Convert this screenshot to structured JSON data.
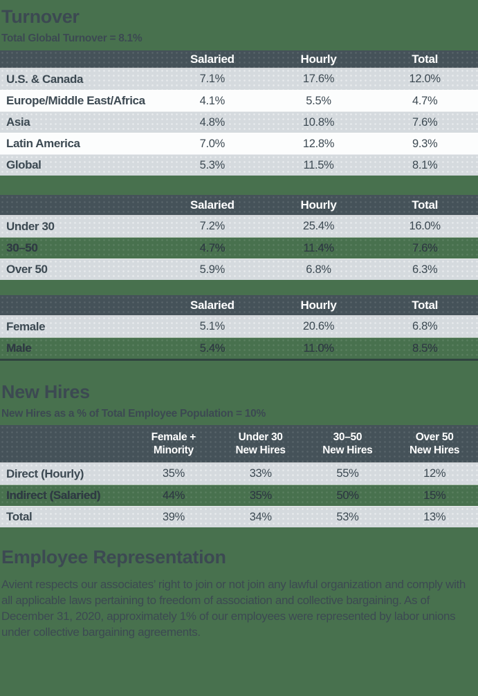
{
  "colors": {
    "page_background": "#48714e",
    "table_header_bg": "#455259",
    "row_gray_bg": "#d5dade",
    "row_white_bg": "#fcfdfd",
    "header_text": "#ffffff",
    "body_text": "#3c4952"
  },
  "turnover": {
    "heading": "Turnover",
    "subtitle": "Total Global Turnover = 8.1%",
    "tables": [
      {
        "name": "turnover-by-region",
        "columns": [
          "",
          "Salaried",
          "Hourly",
          "Total"
        ],
        "rows": [
          {
            "label": "U.S. & Canada",
            "values": [
              "7.1%",
              "17.6%",
              "12.0%"
            ],
            "bg": "gray"
          },
          {
            "label": "Europe/Middle East/Africa",
            "values": [
              "4.1%",
              "5.5%",
              "4.7%"
            ],
            "bg": "white"
          },
          {
            "label": "Asia",
            "values": [
              "4.8%",
              "10.8%",
              "7.6%"
            ],
            "bg": "gray"
          },
          {
            "label": "Latin America",
            "values": [
              "7.0%",
              "12.8%",
              "9.3%"
            ],
            "bg": "white"
          },
          {
            "label": "Global",
            "values": [
              "5.3%",
              "11.5%",
              "8.1%"
            ],
            "bg": "gray"
          }
        ]
      },
      {
        "name": "turnover-by-age",
        "columns": [
          "",
          "Salaried",
          "Hourly",
          "Total"
        ],
        "rows": [
          {
            "label": "Under 30",
            "values": [
              "7.2%",
              "25.4%",
              "16.0%"
            ],
            "bg": "gray"
          },
          {
            "label": "30–50",
            "values": [
              "4.7%",
              "11.4%",
              "7.6%"
            ],
            "bg": "green"
          },
          {
            "label": "Over 50",
            "values": [
              "5.9%",
              "6.8%",
              "6.3%"
            ],
            "bg": "gray"
          }
        ]
      },
      {
        "name": "turnover-by-gender",
        "columns": [
          "",
          "Salaried",
          "Hourly",
          "Total"
        ],
        "rows": [
          {
            "label": "Female",
            "values": [
              "5.1%",
              "20.6%",
              "6.8%"
            ],
            "bg": "gray"
          },
          {
            "label": "Male",
            "values": [
              "5.4%",
              "11.0%",
              "8.5%"
            ],
            "bg": "green"
          }
        ]
      }
    ]
  },
  "new_hires": {
    "heading": "New Hires",
    "subtitle": "New Hires as a % of Total Employee Population = 10%",
    "table": {
      "name": "new-hires-breakdown",
      "columns": [
        "",
        "Female +\nMinority",
        "Under 30\nNew Hires",
        "30–50\nNew Hires",
        "Over 50\nNew Hires"
      ],
      "rows": [
        {
          "label": "Direct (Hourly)",
          "values": [
            "35%",
            "33%",
            "55%",
            "12%"
          ],
          "bg": "gray"
        },
        {
          "label": "Indirect (Salaried)",
          "values": [
            "44%",
            "35%",
            "50%",
            "15%"
          ],
          "bg": "green"
        },
        {
          "label": "Total",
          "values": [
            "39%",
            "34%",
            "53%",
            "13%"
          ],
          "bg": "gray"
        }
      ]
    }
  },
  "employee_representation": {
    "heading": "Employee Representation",
    "body": "Avient respects our associates’ right to join or not join any lawful organization and comply with all applicable laws pertaining to freedom of association and collective bargaining. As of December 31, 2020, approximately 1% of our employees were represented by labor unions under collective bargaining agreements."
  }
}
